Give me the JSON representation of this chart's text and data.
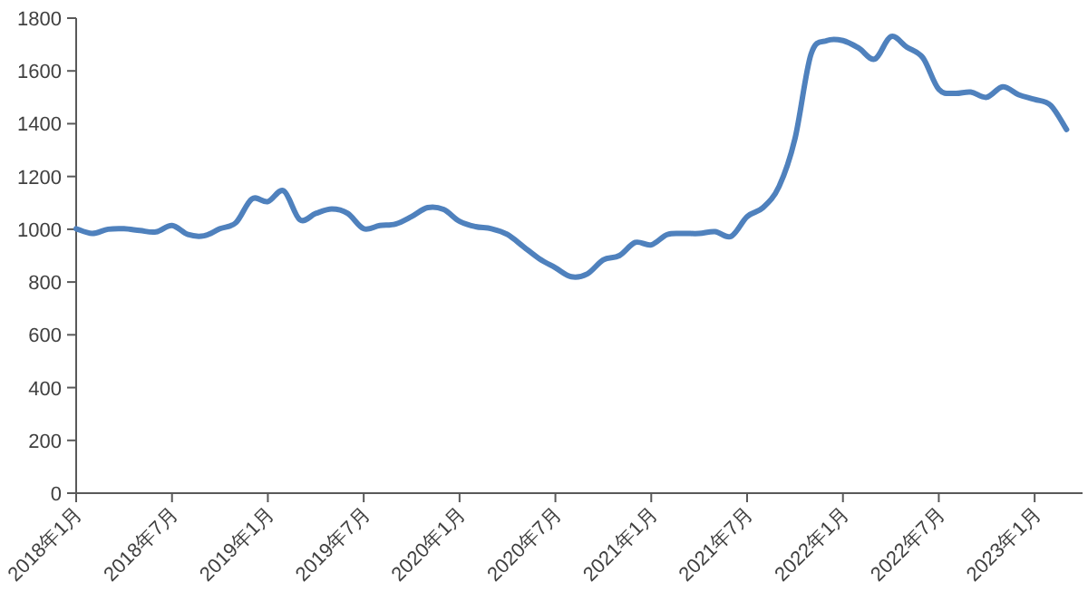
{
  "chart_data": {
    "type": "line",
    "categories": [
      "2018年1月",
      null,
      null,
      null,
      null,
      null,
      "2018年7月",
      null,
      null,
      null,
      null,
      null,
      "2019年1月",
      null,
      null,
      null,
      null,
      null,
      "2019年7月",
      null,
      null,
      null,
      null,
      null,
      "2020年1月",
      null,
      null,
      null,
      null,
      null,
      "2020年7月",
      null,
      null,
      null,
      null,
      null,
      "2021年1月",
      null,
      null,
      null,
      null,
      null,
      "2021年7月",
      null,
      null,
      null,
      null,
      null,
      "2022年1月",
      null,
      null,
      null,
      null,
      null,
      "2022年7月",
      null,
      null,
      null,
      null,
      null,
      "2023年1月",
      null,
      null
    ],
    "series": [
      {
        "color": "#4f81bd",
        "values": [
          1002,
          984,
          1000,
          1002,
          995,
          990,
          1014,
          980,
          975,
          1002,
          1025,
          1115,
          1105,
          1145,
          1036,
          1060,
          1077,
          1060,
          1002,
          1014,
          1020,
          1048,
          1082,
          1075,
          1030,
          1010,
          1002,
          980,
          934,
          888,
          854,
          820,
          831,
          884,
          900,
          950,
          941,
          980,
          984,
          984,
          991,
          973,
          1048,
          1082,
          1162,
          1344,
          1663,
          1715,
          1715,
          1686,
          1645,
          1730,
          1690,
          1650,
          1530,
          1515,
          1520,
          1500,
          1540,
          1510,
          1492,
          1470,
          1378
        ]
      }
    ],
    "ylim": [
      0,
      1800
    ],
    "yticks": [
      0,
      200,
      400,
      600,
      800,
      1000,
      1200,
      1400,
      1600,
      1800
    ],
    "grid": false,
    "marker": "none",
    "line_style": "solid"
  }
}
